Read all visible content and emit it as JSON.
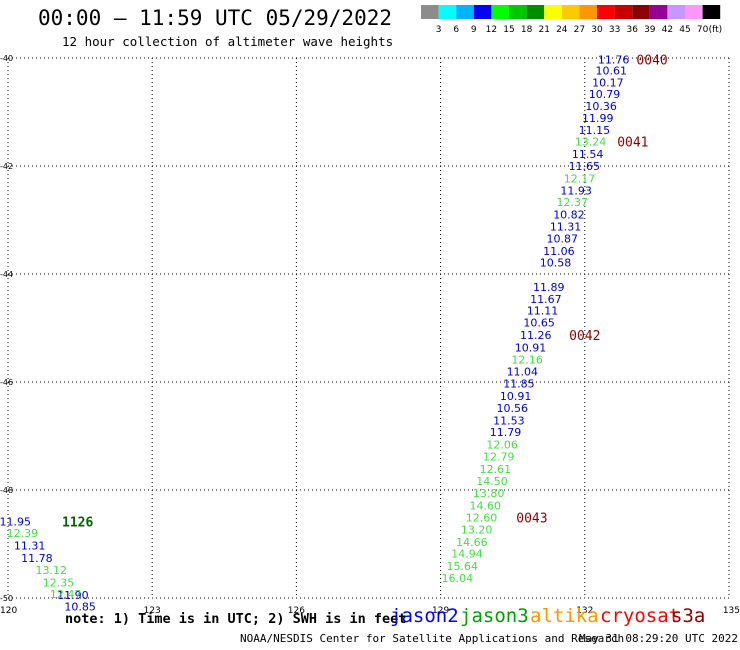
{
  "header": {
    "title": "00:00 – 11:59 UTC 05/29/2022",
    "subtitle": "12 hour collection of altimeter wave heights"
  },
  "colorbar": {
    "labels": [
      "3",
      "6",
      "9",
      "12",
      "15",
      "18",
      "21",
      "24",
      "27",
      "30",
      "33",
      "36",
      "39",
      "42",
      "45",
      "70",
      "(ft)"
    ],
    "colors": [
      "#8c8c8c",
      "#00ffff",
      "#00b4ff",
      "#0000ff",
      "#00ff00",
      "#00c800",
      "#008c00",
      "#ffff00",
      "#ffc800",
      "#ff9600",
      "#ff0000",
      "#c80000",
      "#8c0000",
      "#960096",
      "#c896ff",
      "#ff96ff",
      "#000000"
    ]
  },
  "legend": {
    "note": "note: 1) Time is in UTC; 2) SWH is in feet",
    "satellites": [
      {
        "name": "jason2",
        "color": "#0000ff"
      },
      {
        "name": "jason3",
        "color": "#00a000"
      },
      {
        "name": "altika",
        "color": "#ff9600"
      },
      {
        "name": "cryosat",
        "color": "#ff0000"
      },
      {
        "name": "s3a",
        "color": "#8c0000"
      }
    ]
  },
  "footer": {
    "agency": "NOAA/NESDIS Center for Satellite Applications and Research",
    "timestamp": "May 31 08:29:20 UTC 2022"
  },
  "chart_data": {
    "type": "scatter",
    "title": "00:00 – 11:59 UTC 05/29/2022",
    "subtitle": "12 hour collection of altimeter wave heights",
    "xlim": [
      120,
      135
    ],
    "ylim": [
      -50,
      -40
    ],
    "x_ticks": [
      "120",
      "123",
      "126",
      "129",
      "132",
      "135"
    ],
    "y_ticks": [
      "-40",
      "-42",
      "-44",
      "-46",
      "-48",
      "-50"
    ],
    "grid": true,
    "series": [
      {
        "name": "jason2",
        "color": "#0000cc",
        "points": [
          {
            "x": 132.6,
            "y": -40.03,
            "label": "11.76"
          },
          {
            "x": 132.55,
            "y": -40.23,
            "label": "10.61"
          },
          {
            "x": 132.48,
            "y": -40.45,
            "label": "10.17"
          },
          {
            "x": 132.41,
            "y": -40.67,
            "label": "10.79"
          },
          {
            "x": 132.34,
            "y": -40.89,
            "label": "10.36"
          },
          {
            "x": 132.27,
            "y": -41.11,
            "label": "11.99"
          },
          {
            "x": 132.2,
            "y": -41.33,
            "label": "11.15"
          },
          {
            "x": 132.06,
            "y": -41.78,
            "label": "11.54"
          },
          {
            "x": 131.99,
            "y": -42.0,
            "label": "11.65"
          },
          {
            "x": 131.82,
            "y": -42.45,
            "label": "11.93"
          },
          {
            "x": 131.67,
            "y": -42.9,
            "label": "10.82"
          },
          {
            "x": 131.6,
            "y": -43.12,
            "label": "11.31"
          },
          {
            "x": 131.53,
            "y": -43.34,
            "label": "10.87"
          },
          {
            "x": 131.46,
            "y": -43.57,
            "label": "11.06"
          },
          {
            "x": 131.39,
            "y": -43.79,
            "label": "10.58"
          },
          {
            "x": 131.25,
            "y": -44.24,
            "label": "11.89"
          },
          {
            "x": 131.19,
            "y": -44.46,
            "label": "11.67"
          },
          {
            "x": 131.12,
            "y": -44.68,
            "label": "11.11"
          },
          {
            "x": 131.05,
            "y": -44.9,
            "label": "10.65"
          },
          {
            "x": 130.98,
            "y": -45.13,
            "label": "11.26"
          },
          {
            "x": 130.87,
            "y": -45.36,
            "label": "10.91"
          },
          {
            "x": 130.7,
            "y": -45.81,
            "label": "11.04"
          },
          {
            "x": 130.63,
            "y": -46.03,
            "label": "11.85"
          },
          {
            "x": 130.56,
            "y": -46.26,
            "label": "10.91"
          },
          {
            "x": 130.49,
            "y": -46.48,
            "label": "10.56"
          },
          {
            "x": 130.42,
            "y": -46.71,
            "label": "11.53"
          },
          {
            "x": 130.35,
            "y": -46.93,
            "label": "11.79"
          },
          {
            "x": 120.15,
            "y": -48.58,
            "label": "11.95"
          },
          {
            "x": 120.45,
            "y": -49.03,
            "label": "11.31"
          },
          {
            "x": 120.6,
            "y": -49.26,
            "label": "11.78"
          },
          {
            "x": 121.35,
            "y": -49.94,
            "label": "11.90"
          },
          {
            "x": 121.5,
            "y": -50.16,
            "label": "10.85"
          }
        ]
      },
      {
        "name": "jason3",
        "color": "#44dd44",
        "points": [
          {
            "x": 132.12,
            "y": -41.55,
            "label": "13.24"
          },
          {
            "x": 131.89,
            "y": -42.23,
            "label": "12.17"
          },
          {
            "x": 131.74,
            "y": -42.67,
            "label": "12.37"
          },
          {
            "x": 130.8,
            "y": -45.58,
            "label": "12.16"
          },
          {
            "x": 130.28,
            "y": -47.16,
            "label": "12.06"
          },
          {
            "x": 130.21,
            "y": -47.38,
            "label": "12.79"
          },
          {
            "x": 130.14,
            "y": -47.61,
            "label": "12.61"
          },
          {
            "x": 130.07,
            "y": -47.83,
            "label": "14.50"
          },
          {
            "x": 130.0,
            "y": -48.06,
            "label": "13.80"
          },
          {
            "x": 129.93,
            "y": -48.29,
            "label": "14.60"
          },
          {
            "x": 129.85,
            "y": -48.51,
            "label": "12.60"
          },
          {
            "x": 129.75,
            "y": -48.73,
            "label": "13.20"
          },
          {
            "x": 129.65,
            "y": -48.96,
            "label": "14.66"
          },
          {
            "x": 129.55,
            "y": -49.18,
            "label": "14.94"
          },
          {
            "x": 129.45,
            "y": -49.41,
            "label": "15.64"
          },
          {
            "x": 129.35,
            "y": -49.63,
            "label": "16.04"
          },
          {
            "x": 120.3,
            "y": -48.8,
            "label": "12.39"
          },
          {
            "x": 120.9,
            "y": -49.48,
            "label": "13.12"
          },
          {
            "x": 121.05,
            "y": -49.71,
            "label": "12.35"
          },
          {
            "x": 121.2,
            "y": -49.93,
            "label": "12.47"
          }
        ]
      }
    ],
    "time_markers": [
      {
        "x": 133.4,
        "y": -40.03,
        "label": "0040",
        "color": "#8c0000"
      },
      {
        "x": 133.0,
        "y": -41.55,
        "label": "0041",
        "color": "#8c0000"
      },
      {
        "x": 132.0,
        "y": -45.13,
        "label": "0042",
        "color": "#8c0000"
      },
      {
        "x": 130.9,
        "y": -48.51,
        "label": "0043",
        "color": "#8c0000"
      },
      {
        "x": 121.45,
        "y": -48.58,
        "label": "1126",
        "color": "#006400"
      }
    ]
  }
}
